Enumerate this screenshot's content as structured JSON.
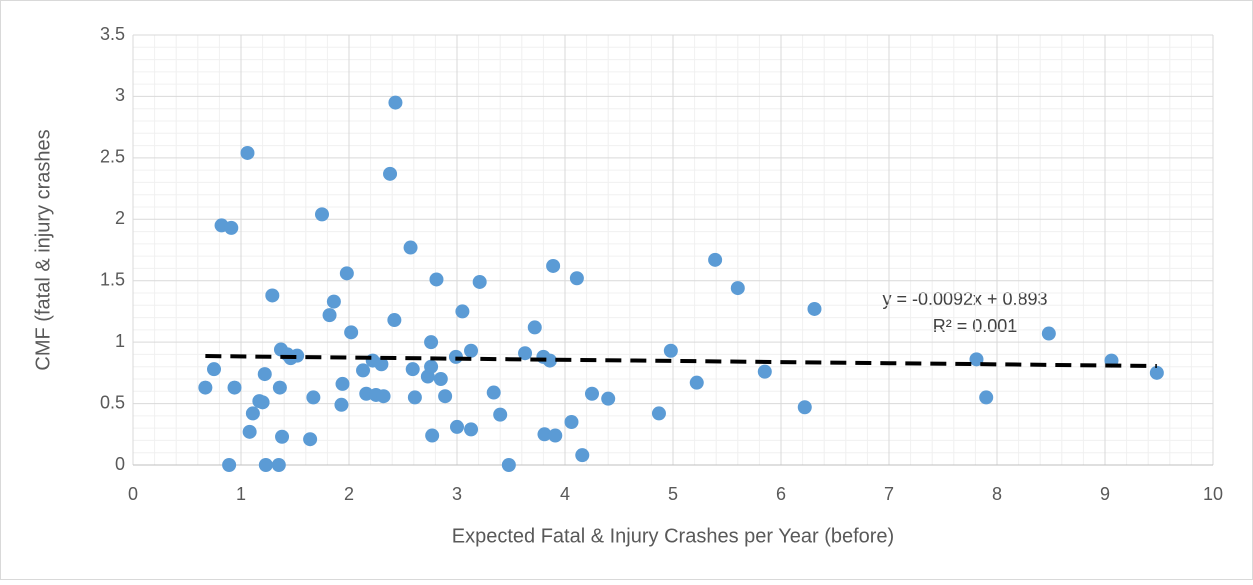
{
  "chart_data": {
    "type": "scatter",
    "x_label": "Expected Fatal & Injury Crashes per Year (before)",
    "y_label": "CMF (fatal & injury crashes",
    "xlim": [
      0,
      10
    ],
    "xticks": [
      0,
      1,
      2,
      3,
      4,
      5,
      6,
      7,
      8,
      9,
      10
    ],
    "ylim": [
      0,
      3.5
    ],
    "yticks": [
      0,
      0.5,
      1,
      1.5,
      2,
      2.5,
      3,
      3.5
    ],
    "grid": true,
    "minor_grid": true,
    "x": [
      0.67,
      0.75,
      0.82,
      0.89,
      0.91,
      0.94,
      1.06,
      1.08,
      1.11,
      1.17,
      1.2,
      1.22,
      1.23,
      1.29,
      1.35,
      1.36,
      1.37,
      1.38,
      1.43,
      1.46,
      1.52,
      1.64,
      1.67,
      1.75,
      1.82,
      1.86,
      1.93,
      1.94,
      1.98,
      2.02,
      2.13,
      2.16,
      2.22,
      2.25,
      2.3,
      2.32,
      2.38,
      2.42,
      2.43,
      2.57,
      2.59,
      2.61,
      2.73,
      2.76,
      2.76,
      2.77,
      2.81,
      2.85,
      2.89,
      2.99,
      3.0,
      3.05,
      3.13,
      3.13,
      3.21,
      3.34,
      3.4,
      3.48,
      3.63,
      3.72,
      3.8,
      3.81,
      3.86,
      3.89,
      3.91,
      4.06,
      4.11,
      4.16,
      4.25,
      4.4,
      4.87,
      4.98,
      5.22,
      5.39,
      5.6,
      5.85,
      6.22,
      6.31,
      7.81,
      7.9,
      8.48,
      9.06,
      9.48
    ],
    "series": [
      {
        "color": "#5b9bd5",
        "values": [
          0.63,
          0.78,
          1.95,
          0.0,
          1.93,
          0.63,
          2.54,
          0.27,
          0.42,
          0.52,
          0.51,
          0.74,
          0.0,
          1.38,
          0.0,
          0.63,
          0.94,
          0.23,
          0.9,
          0.87,
          0.89,
          0.21,
          0.55,
          2.04,
          1.22,
          1.33,
          0.49,
          0.66,
          1.56,
          1.08,
          0.77,
          0.58,
          0.85,
          0.57,
          0.82,
          0.56,
          2.37,
          1.18,
          2.95,
          1.77,
          0.78,
          0.55,
          0.72,
          1.0,
          0.8,
          0.24,
          1.51,
          0.7,
          0.56,
          0.88,
          0.31,
          1.25,
          0.93,
          0.29,
          1.49,
          0.59,
          0.41,
          0.0,
          0.91,
          1.12,
          0.88,
          0.25,
          0.85,
          1.62,
          0.24,
          0.35,
          1.52,
          0.08,
          0.58,
          0.54,
          0.42,
          0.93,
          0.67,
          1.67,
          1.44,
          0.76,
          0.47,
          1.27,
          0.86,
          0.55,
          1.07,
          0.85,
          0.75
        ]
      }
    ],
    "trendline": {
      "slope": -0.0092,
      "intercept": 0.893,
      "color": "#000000",
      "label": "y = -0.0092x + 0.893",
      "r2_label": "R² = 0.001"
    }
  }
}
